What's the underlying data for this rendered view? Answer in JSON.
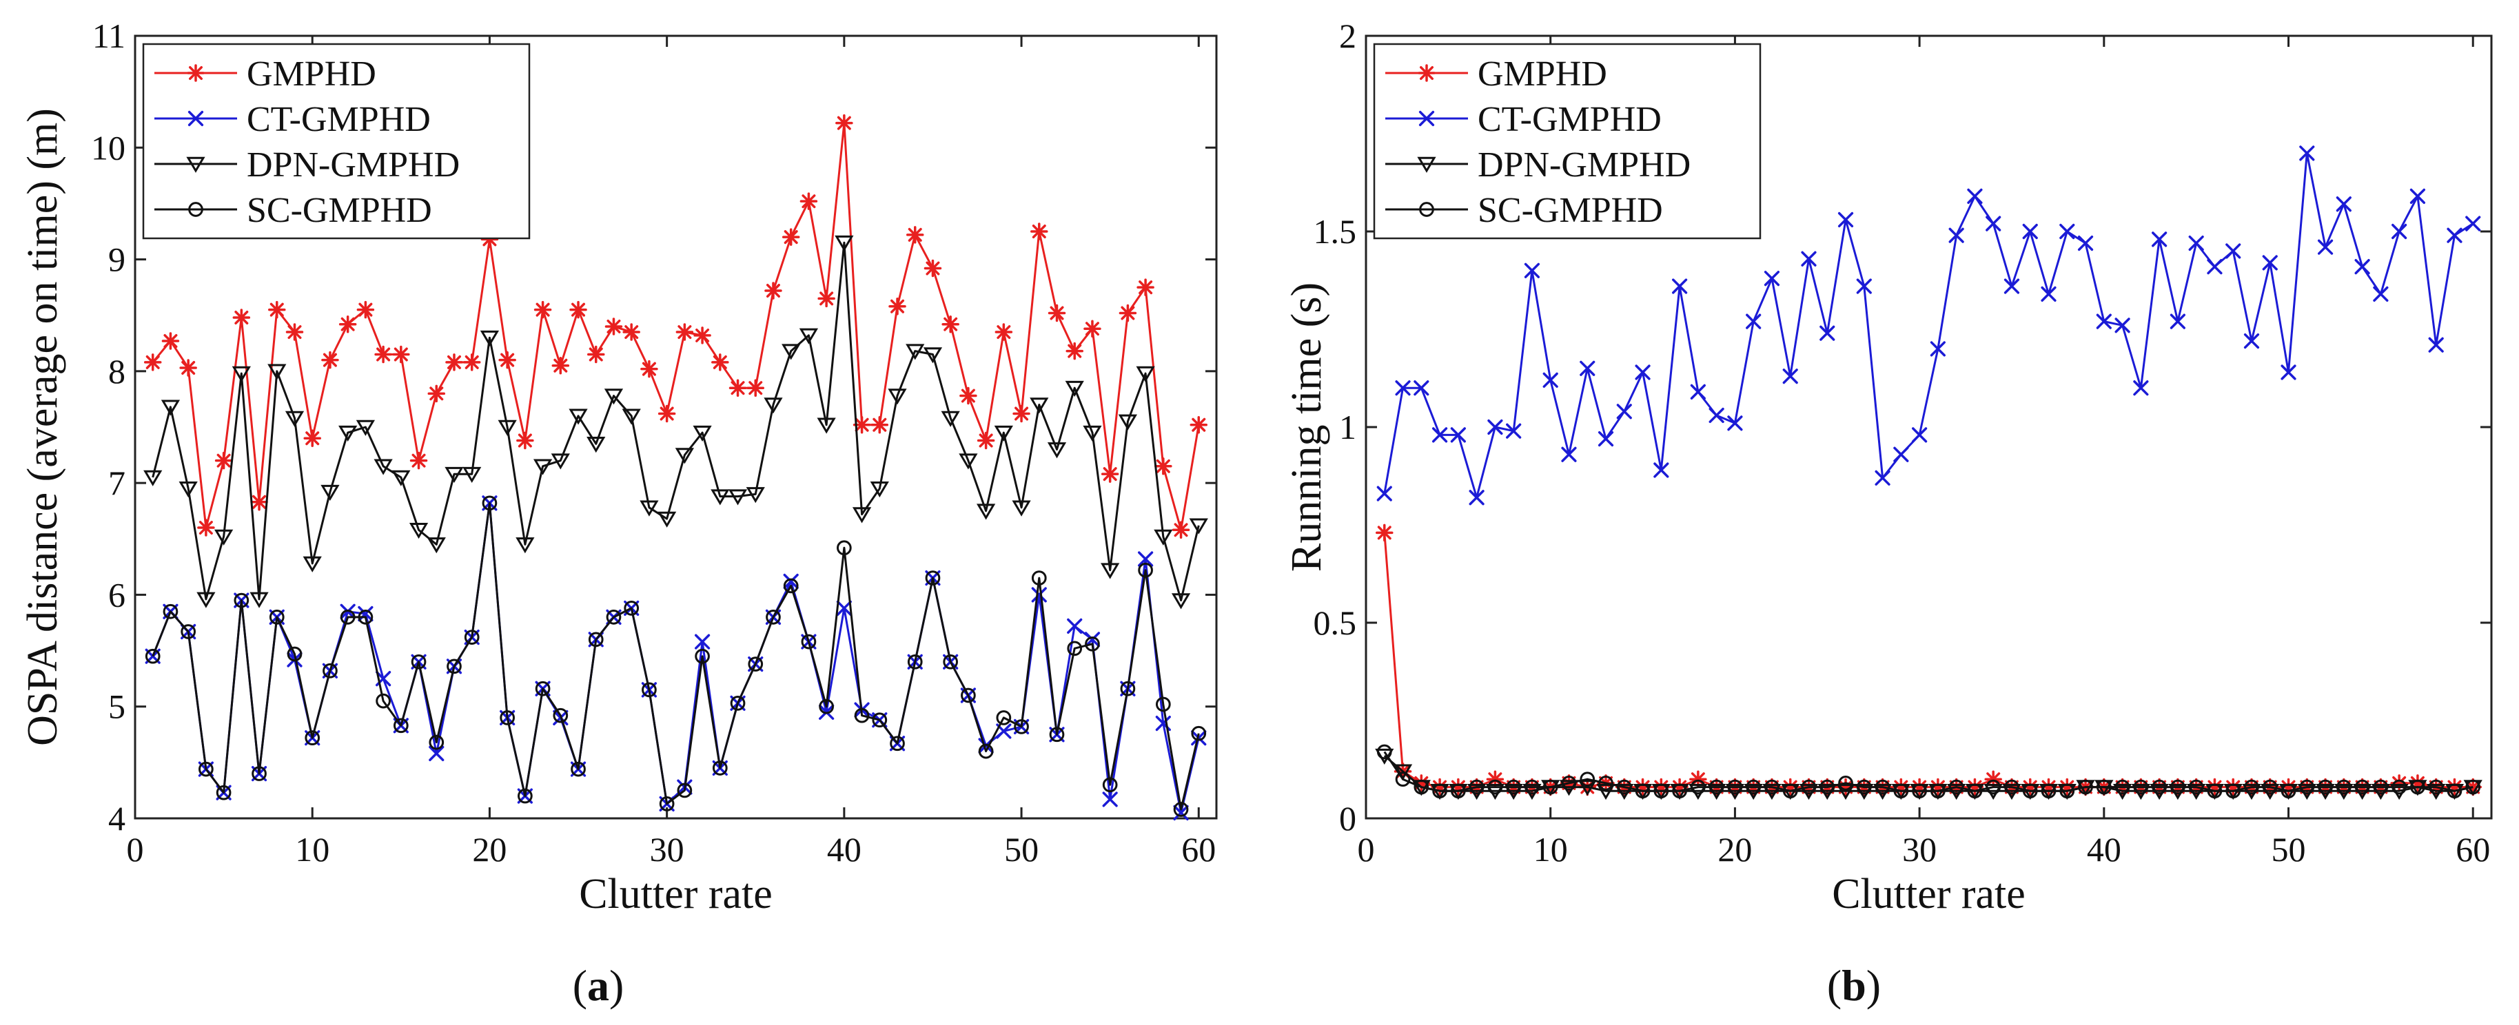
{
  "chart_data": [
    {
      "type": "line",
      "caption_letter": "a",
      "xlabel": "Clutter rate",
      "ylabel": "OSPA distance (average on time) (m)",
      "xlim": [
        0,
        61
      ],
      "ylim": [
        4,
        11
      ],
      "xticks": [
        0,
        10,
        20,
        30,
        40,
        50,
        60
      ],
      "yticks": [
        4,
        5,
        6,
        7,
        8,
        9,
        10,
        11
      ],
      "legend_position": "top-left",
      "x": [
        1,
        2,
        3,
        4,
        5,
        6,
        7,
        8,
        9,
        10,
        11,
        12,
        13,
        14,
        15,
        16,
        17,
        18,
        19,
        20,
        21,
        22,
        23,
        24,
        25,
        26,
        27,
        28,
        29,
        30,
        31,
        32,
        33,
        34,
        35,
        36,
        37,
        38,
        39,
        40,
        41,
        42,
        43,
        44,
        45,
        46,
        47,
        48,
        49,
        50,
        51,
        52,
        53,
        54,
        55,
        56,
        57,
        58,
        59,
        60
      ],
      "series": [
        {
          "name": "GMPHD",
          "color": "#e8201f",
          "marker": "star",
          "values": [
            8.08,
            8.27,
            8.03,
            6.6,
            7.2,
            8.48,
            6.83,
            8.55,
            8.35,
            7.4,
            8.1,
            8.42,
            8.55,
            8.15,
            8.15,
            7.2,
            7.8,
            8.08,
            8.08,
            9.18,
            8.1,
            7.38,
            8.55,
            8.05,
            8.55,
            8.15,
            8.4,
            8.35,
            8.02,
            7.62,
            8.35,
            8.32,
            8.08,
            7.85,
            7.85,
            8.72,
            9.2,
            9.52,
            8.65,
            10.22,
            7.52,
            7.52,
            8.58,
            9.22,
            8.92,
            8.42,
            7.78,
            7.38,
            8.35,
            7.62,
            9.25,
            8.52,
            8.18,
            8.38,
            7.08,
            8.52,
            8.75,
            7.15,
            6.58,
            7.52
          ]
        },
        {
          "name": "CT-GMPHD",
          "color": "#1b1bd6",
          "marker": "x",
          "values": [
            5.45,
            5.85,
            5.67,
            4.44,
            4.23,
            5.95,
            4.4,
            5.8,
            5.42,
            4.72,
            5.32,
            5.85,
            5.83,
            5.25,
            4.83,
            5.4,
            4.58,
            5.36,
            5.62,
            6.82,
            4.9,
            4.2,
            5.16,
            4.9,
            4.44,
            5.6,
            5.8,
            5.88,
            5.15,
            4.13,
            4.28,
            5.58,
            4.45,
            5.03,
            5.38,
            5.8,
            6.12,
            5.58,
            4.95,
            5.88,
            4.97,
            4.88,
            4.67,
            5.4,
            6.15,
            5.4,
            5.1,
            4.65,
            4.78,
            4.82,
            6.0,
            4.75,
            5.72,
            5.6,
            4.17,
            5.16,
            6.32,
            4.85,
            4.05,
            4.72
          ]
        },
        {
          "name": "DPN-GMPHD",
          "color": "#111111",
          "marker": "triangle-down",
          "values": [
            7.05,
            7.68,
            6.95,
            5.96,
            6.52,
            7.98,
            5.96,
            8.0,
            7.58,
            6.28,
            6.92,
            7.45,
            7.5,
            7.15,
            7.05,
            6.58,
            6.45,
            7.08,
            7.08,
            8.3,
            7.5,
            6.45,
            7.15,
            7.2,
            7.6,
            7.35,
            7.78,
            7.6,
            6.78,
            6.68,
            7.25,
            7.45,
            6.88,
            6.88,
            6.9,
            7.7,
            8.18,
            8.32,
            7.52,
            9.15,
            6.72,
            6.95,
            7.78,
            8.18,
            8.15,
            7.58,
            7.2,
            6.75,
            7.45,
            6.78,
            7.7,
            7.3,
            7.85,
            7.45,
            6.22,
            7.55,
            7.98,
            6.52,
            5.95,
            6.62
          ]
        },
        {
          "name": "SC-GMPHD",
          "color": "#111111",
          "marker": "circle",
          "values": [
            5.45,
            5.85,
            5.67,
            4.44,
            4.23,
            5.95,
            4.4,
            5.8,
            5.47,
            4.72,
            5.32,
            5.8,
            5.8,
            5.05,
            4.83,
            5.4,
            4.68,
            5.36,
            5.62,
            6.82,
            4.9,
            4.2,
            5.16,
            4.92,
            4.44,
            5.6,
            5.8,
            5.88,
            5.15,
            4.13,
            4.25,
            5.45,
            4.45,
            5.03,
            5.38,
            5.8,
            6.08,
            5.58,
            5.0,
            6.42,
            4.92,
            4.88,
            4.67,
            5.4,
            6.15,
            5.4,
            5.1,
            4.6,
            4.9,
            4.82,
            6.15,
            4.75,
            5.52,
            5.56,
            4.3,
            5.16,
            6.22,
            5.02,
            4.08,
            4.76
          ]
        }
      ]
    },
    {
      "type": "line",
      "caption_letter": "b",
      "xlabel": "Clutter rate",
      "ylabel": "Running time (s)",
      "xlim": [
        0,
        61
      ],
      "ylim": [
        0,
        2
      ],
      "xticks": [
        0,
        10,
        20,
        30,
        40,
        50,
        60
      ],
      "yticks": [
        0,
        0.5,
        1,
        1.5,
        2
      ],
      "legend_position": "top-left",
      "x": [
        1,
        2,
        3,
        4,
        5,
        6,
        7,
        8,
        9,
        10,
        11,
        12,
        13,
        14,
        15,
        16,
        17,
        18,
        19,
        20,
        21,
        22,
        23,
        24,
        25,
        26,
        27,
        28,
        29,
        30,
        31,
        32,
        33,
        34,
        35,
        36,
        37,
        38,
        39,
        40,
        41,
        42,
        43,
        44,
        45,
        46,
        47,
        48,
        49,
        50,
        51,
        52,
        53,
        54,
        55,
        56,
        57,
        58,
        59,
        60
      ],
      "series": [
        {
          "name": "GMPHD",
          "color": "#e8201f",
          "marker": "star",
          "values": [
            0.73,
            0.12,
            0.09,
            0.08,
            0.08,
            0.08,
            0.1,
            0.08,
            0.08,
            0.08,
            0.09,
            0.08,
            0.09,
            0.08,
            0.08,
            0.08,
            0.08,
            0.1,
            0.08,
            0.08,
            0.08,
            0.08,
            0.08,
            0.08,
            0.08,
            0.08,
            0.08,
            0.08,
            0.08,
            0.08,
            0.08,
            0.08,
            0.08,
            0.1,
            0.08,
            0.08,
            0.08,
            0.08,
            0.08,
            0.08,
            0.08,
            0.08,
            0.08,
            0.08,
            0.08,
            0.08,
            0.08,
            0.08,
            0.08,
            0.08,
            0.08,
            0.08,
            0.08,
            0.08,
            0.08,
            0.09,
            0.09,
            0.08,
            0.08,
            0.08
          ]
        },
        {
          "name": "CT-GMPHD",
          "color": "#1b1bd6",
          "marker": "x",
          "values": [
            0.83,
            1.1,
            1.1,
            0.98,
            0.98,
            0.82,
            1.0,
            0.99,
            1.4,
            1.12,
            0.93,
            1.15,
            0.97,
            1.04,
            1.14,
            0.89,
            1.36,
            1.09,
            1.03,
            1.01,
            1.27,
            1.38,
            1.13,
            1.43,
            1.24,
            1.53,
            1.36,
            0.87,
            0.93,
            0.98,
            1.2,
            1.49,
            1.59,
            1.52,
            1.36,
            1.5,
            1.34,
            1.5,
            1.47,
            1.27,
            1.26,
            1.1,
            1.48,
            1.27,
            1.47,
            1.41,
            1.45,
            1.22,
            1.42,
            1.14,
            1.7,
            1.46,
            1.57,
            1.41,
            1.34,
            1.5,
            1.59,
            1.21,
            1.49,
            1.52
          ]
        },
        {
          "name": "DPN-GMPHD",
          "color": "#111111",
          "marker": "triangle-down",
          "values": [
            0.16,
            0.12,
            0.08,
            0.07,
            0.07,
            0.07,
            0.07,
            0.07,
            0.07,
            0.08,
            0.08,
            0.08,
            0.07,
            0.07,
            0.07,
            0.07,
            0.07,
            0.07,
            0.07,
            0.07,
            0.07,
            0.07,
            0.07,
            0.07,
            0.07,
            0.07,
            0.07,
            0.07,
            0.07,
            0.07,
            0.07,
            0.07,
            0.07,
            0.07,
            0.07,
            0.07,
            0.07,
            0.07,
            0.08,
            0.08,
            0.07,
            0.07,
            0.07,
            0.07,
            0.07,
            0.07,
            0.07,
            0.07,
            0.07,
            0.07,
            0.07,
            0.07,
            0.07,
            0.07,
            0.07,
            0.07,
            0.08,
            0.07,
            0.07,
            0.08
          ]
        },
        {
          "name": "SC-GMPHD",
          "color": "#111111",
          "marker": "circle",
          "values": [
            0.17,
            0.1,
            0.08,
            0.07,
            0.07,
            0.08,
            0.08,
            0.08,
            0.08,
            0.08,
            0.09,
            0.1,
            0.09,
            0.08,
            0.07,
            0.07,
            0.07,
            0.08,
            0.08,
            0.08,
            0.08,
            0.08,
            0.07,
            0.08,
            0.08,
            0.09,
            0.08,
            0.08,
            0.07,
            0.07,
            0.07,
            0.08,
            0.07,
            0.08,
            0.08,
            0.07,
            0.07,
            0.07,
            0.08,
            0.08,
            0.08,
            0.08,
            0.08,
            0.08,
            0.08,
            0.07,
            0.07,
            0.08,
            0.08,
            0.07,
            0.08,
            0.08,
            0.08,
            0.08,
            0.08,
            0.08,
            0.08,
            0.08,
            0.07,
            0.08
          ]
        }
      ]
    }
  ]
}
